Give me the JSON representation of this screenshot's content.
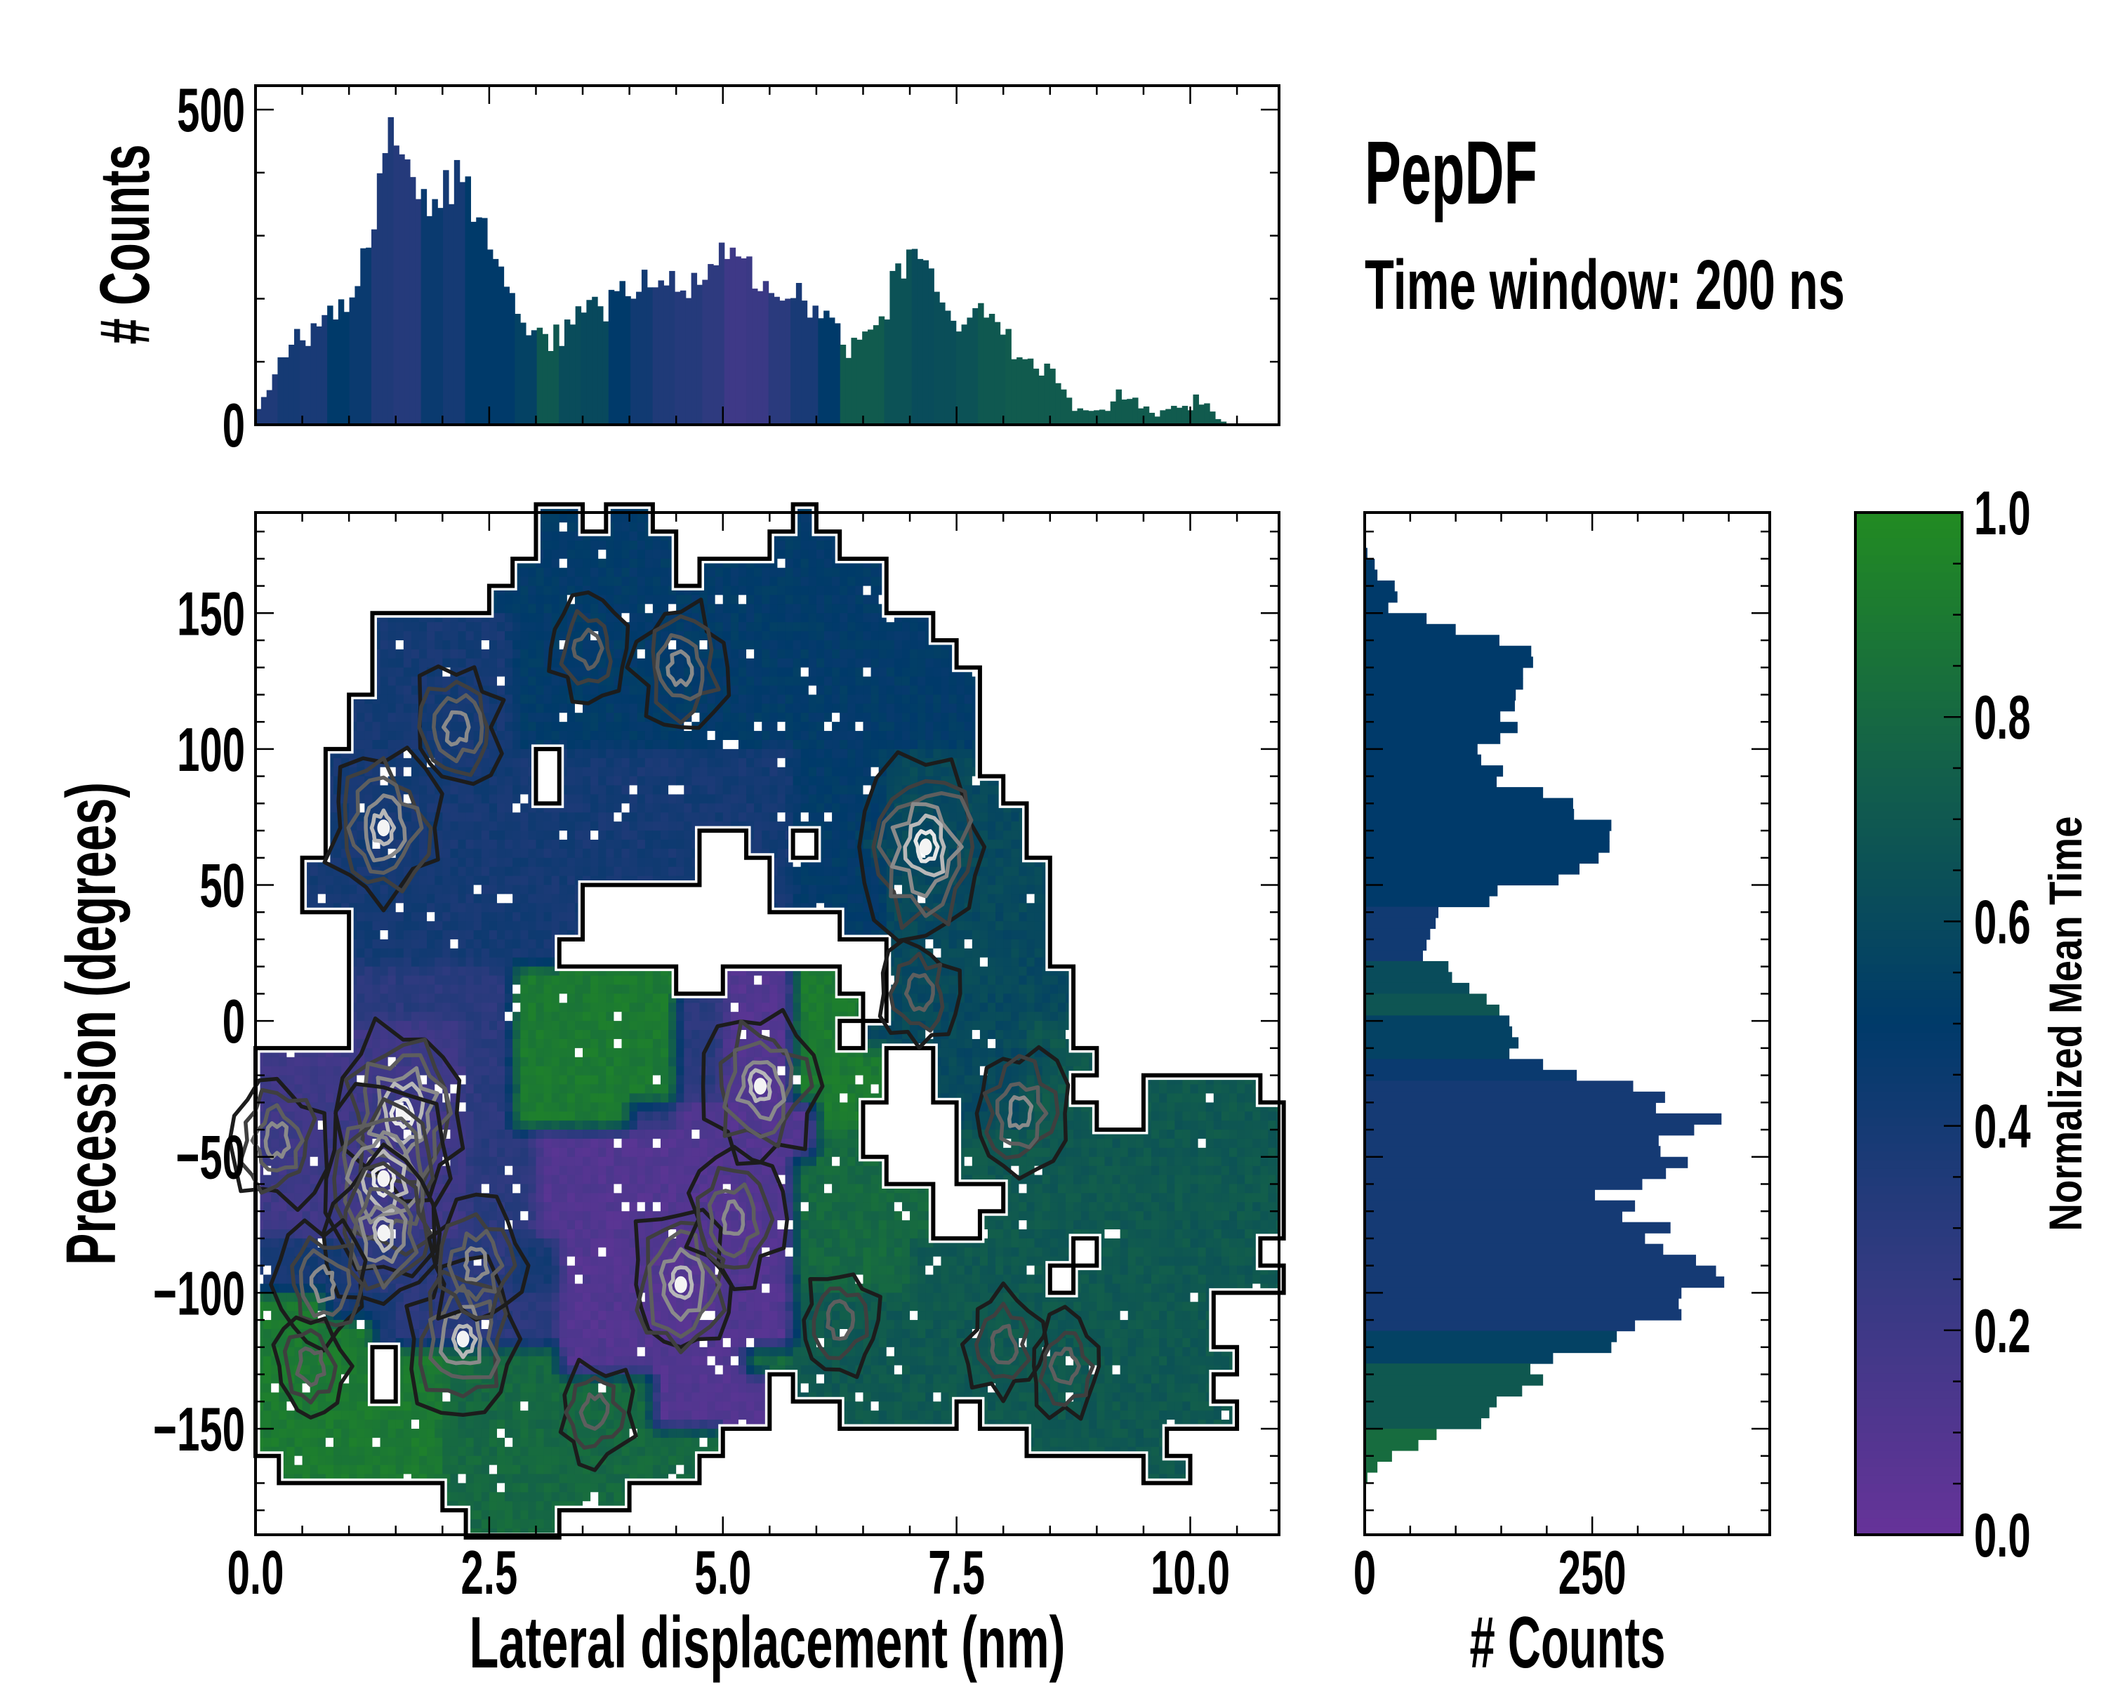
{
  "title": {
    "name": "PepDF",
    "subtitle": "Time window: 200 ns"
  },
  "chart_data": [
    {
      "id": "top_hist",
      "type": "bar",
      "xlabel": "",
      "ylabel": "# Counts",
      "xlim": [
        0,
        10.95
      ],
      "ylim": [
        0,
        538
      ],
      "yticks": [
        0,
        500
      ],
      "ytick_labels": [
        "0",
        "500"
      ],
      "bin_start": 0,
      "bin_width": 0.059,
      "counts": [
        25,
        44,
        55,
        80,
        107,
        107,
        127,
        152,
        134,
        125,
        161,
        156,
        174,
        189,
        167,
        199,
        179,
        202,
        220,
        280,
        281,
        310,
        399,
        431,
        488,
        443,
        429,
        421,
        393,
        358,
        374,
        331,
        358,
        344,
        404,
        350,
        420,
        385,
        394,
        322,
        329,
        328,
        278,
        263,
        251,
        219,
        209,
        176,
        162,
        142,
        150,
        154,
        144,
        117,
        159,
        125,
        167,
        159,
        188,
        178,
        198,
        203,
        188,
        164,
        214,
        212,
        228,
        204,
        200,
        211,
        246,
        218,
        218,
        229,
        221,
        244,
        211,
        213,
        201,
        241,
        222,
        230,
        255,
        253,
        289,
        263,
        281,
        267,
        264,
        267,
        216,
        212,
        228,
        209,
        203,
        197,
        200,
        201,
        225,
        197,
        170,
        189,
        169,
        181,
        170,
        161,
        127,
        106,
        138,
        135,
        148,
        151,
        158,
        172,
        167,
        244,
        256,
        232,
        278,
        279,
        263,
        261,
        248,
        211,
        194,
        181,
        165,
        148,
        159,
        170,
        185,
        193,
        170,
        176,
        163,
        143,
        152,
        104,
        107,
        104,
        105,
        89,
        78,
        97,
        89,
        66,
        56,
        43,
        22,
        26,
        23,
        22,
        23,
        24,
        22,
        37,
        56,
        40,
        41,
        43,
        26,
        29,
        19,
        13,
        23,
        25,
        30,
        27,
        30,
        23,
        48,
        32,
        34,
        21,
        9,
        5,
        1
      ],
      "mean_time_step": 0.25,
      "mean_time": [
        0.35,
        0.4,
        0.38,
        0.5,
        0.45,
        0.35,
        0.32,
        0.45,
        0.4,
        0.5,
        0.5,
        0.55,
        0.7,
        0.62,
        0.6,
        0.5,
        0.42,
        0.35,
        0.32,
        0.28,
        0.2,
        0.22,
        0.3,
        0.38,
        0.5,
        0.72,
        0.72,
        0.66,
        0.62,
        0.63,
        0.66,
        0.7,
        0.72,
        0.72,
        0.72,
        0.72,
        0.72,
        0.72,
        0.72,
        0.72,
        0.72,
        0.72,
        0.72,
        0.72
      ]
    },
    {
      "id": "main",
      "type": "heatmap",
      "xlabel": "Lateral displacement (nm)",
      "ylabel": "Precession (degrees)",
      "xlim": [
        0,
        10.95
      ],
      "ylim": [
        -189,
        187
      ],
      "xticks": [
        0,
        2.5,
        5,
        7.5,
        10
      ],
      "xtick_labels": [
        "0.0",
        "2.5",
        "5.0",
        "7.5",
        "10.0"
      ],
      "yticks": [
        -150,
        -100,
        -50,
        0,
        50,
        100,
        150
      ],
      "ytick_labels": [
        "−150",
        "−100",
        "−50",
        "0",
        "50",
        "100",
        "150"
      ],
      "grid": {
        "x_start": 0,
        "x_step": 0.25,
        "y_top": 190,
        "y_step": 10,
        "value_scale": 0.1,
        "empty": ".",
        "rows": [
          "............55.55......5....................",
          "............555555....555...................",
          "...........5555555.55555555.................",
          "..........55555555555555555.................",
          ".....444444555555555555555555...............",
          ".....4444445555555555555555555..............",
          ".....44444455555555555555555555.............",
          "....444444455555555555555555555.............",
          "....444444455555555555555555555.............",
          "...444444444.444444444455556666.............",
          "...444444444.4444444444555566666............",
          "...444444444444444444445555666666...........",
          "...4444444444444444..44.556666666...........",
          "..44444444444444444...455556666666..........",
          "..444444444444........455556666666..........",
          "....4444444444...........556666666..........",
          "....444444444..............6666666..........",
          "....33333339999999..11199..66666666.........",
          "....3333333999999933111999.66666666.........",
          "....222223399999993311199.666666677........",
          "222222222339999999331119999..6666677........",
          "222222222339999999331119999..666677...77777.",
          "22222222233999993311111199....666777..777777.",
          "22222222233311111111111188....77777777777777.",
          "222222222333111111111118888...77777777777777",
          "22222222233311111111111888888...7777777777777",
          "22222222233311111111111888888..77777777777777",
          "44443333333441111111111888887777777.7777777",
          "4444333333344111111111188888777777.777777777.",
          "99944433333331111111111777777777777777777..",
          "99999433333331111111111777777777777777777...",
          "99999.998888811111111887777777777777777777...",
          "99999.9988888888811111.777777777777777777...",
          "9999999988888888811111...77777.77777777777...",
          "99999999888888888888.............777777.....",
          ".999999988888888888...................77.....",
          "........88888888............................",
          ".........8888..............................."
        ]
      },
      "density_peaks": [
        {
          "x": 2.15,
          "y": 108,
          "level": 3
        },
        {
          "x": 1.37,
          "y": 71,
          "level": 4
        },
        {
          "x": 4.55,
          "y": 130,
          "level": 3
        },
        {
          "x": 3.56,
          "y": 137,
          "level": 2
        },
        {
          "x": 7.17,
          "y": 64,
          "level": 5
        },
        {
          "x": 5.4,
          "y": -24,
          "level": 4
        },
        {
          "x": 8.17,
          "y": -34,
          "level": 3
        },
        {
          "x": 1.58,
          "y": -34,
          "level": 5
        },
        {
          "x": 1.37,
          "y": -58,
          "level": 5
        },
        {
          "x": 1.37,
          "y": -78,
          "level": 4
        },
        {
          "x": 0.23,
          "y": -44,
          "level": 3
        },
        {
          "x": 0.73,
          "y": -97,
          "level": 3
        },
        {
          "x": 2.22,
          "y": -117,
          "level": 4
        },
        {
          "x": 2.36,
          "y": -90,
          "level": 3
        },
        {
          "x": 4.55,
          "y": -97,
          "level": 4
        },
        {
          "x": 5.12,
          "y": -73,
          "level": 3
        },
        {
          "x": 6.25,
          "y": -110,
          "level": 2
        },
        {
          "x": 8.0,
          "y": -119,
          "level": 2
        },
        {
          "x": 8.66,
          "y": -127,
          "level": 2
        },
        {
          "x": 3.63,
          "y": -144,
          "level": 2
        },
        {
          "x": 0.59,
          "y": -127,
          "level": 2
        },
        {
          "x": 7.1,
          "y": 10,
          "level": 2
        }
      ]
    },
    {
      "id": "right_hist",
      "type": "bar",
      "orientation": "horizontal",
      "xlabel": "# Counts",
      "xlim": [
        0,
        445
      ],
      "xticks": [
        0,
        250
      ],
      "xtick_labels": [
        "0",
        "250"
      ],
      "ylim": [
        -189,
        187
      ],
      "bin_center_start": 172,
      "bin_step": -4,
      "counts": [
        3,
        11,
        14,
        33,
        36,
        26,
        68,
        100,
        148,
        183,
        185,
        174,
        174,
        166,
        165,
        149,
        168,
        149,
        124,
        128,
        152,
        145,
        196,
        229,
        230,
        271,
        269,
        269,
        257,
        236,
        213,
        146,
        137,
        81,
        78,
        72,
        68,
        64,
        92,
        96,
        115,
        134,
        148,
        159,
        162,
        169,
        159,
        196,
        233,
        295,
        330,
        320,
        392,
        362,
        323,
        325,
        355,
        331,
        305,
        253,
        297,
        283,
        336,
        308,
        328,
        364,
        386,
        395,
        348,
        345,
        348,
        297,
        277,
        271,
        207,
        182,
        196,
        173,
        145,
        137,
        128,
        79,
        59,
        30,
        14,
        3,
        1
      ],
      "mean_time": [
        0.5,
        0.5,
        0.5,
        0.5,
        0.5,
        0.5,
        0.5,
        0.5,
        0.5,
        0.5,
        0.5,
        0.5,
        0.5,
        0.5,
        0.5,
        0.5,
        0.5,
        0.5,
        0.5,
        0.5,
        0.5,
        0.5,
        0.5,
        0.5,
        0.5,
        0.5,
        0.5,
        0.5,
        0.5,
        0.5,
        0.5,
        0.5,
        0.5,
        0.42,
        0.42,
        0.42,
        0.42,
        0.42,
        0.62,
        0.62,
        0.62,
        0.68,
        0.68,
        0.55,
        0.55,
        0.55,
        0.55,
        0.45,
        0.45,
        0.4,
        0.4,
        0.4,
        0.4,
        0.4,
        0.4,
        0.4,
        0.4,
        0.4,
        0.4,
        0.4,
        0.4,
        0.4,
        0.4,
        0.4,
        0.4,
        0.4,
        0.4,
        0.4,
        0.4,
        0.4,
        0.4,
        0.4,
        0.55,
        0.55,
        0.55,
        0.7,
        0.7,
        0.7,
        0.7,
        0.7,
        0.7,
        0.82,
        0.82,
        0.82,
        0.82,
        0.82,
        0.82
      ]
    },
    {
      "id": "colorbar",
      "type": "colorbar",
      "label": "Normalized Mean Time",
      "range": [
        0,
        1
      ],
      "ticks": [
        0,
        0.2,
        0.4,
        0.6,
        0.8,
        1.0
      ],
      "tick_labels": [
        "0.0",
        "0.2",
        "0.4",
        "0.6",
        "0.8",
        "1.0"
      ],
      "colormap": [
        {
          "v": 0.0,
          "color": "#663399"
        },
        {
          "v": 0.25,
          "color": "#343a82"
        },
        {
          "v": 0.5,
          "color": "#003a6a"
        },
        {
          "v": 0.75,
          "color": "#13604a"
        },
        {
          "v": 1.0,
          "color": "#228b22"
        }
      ]
    }
  ]
}
